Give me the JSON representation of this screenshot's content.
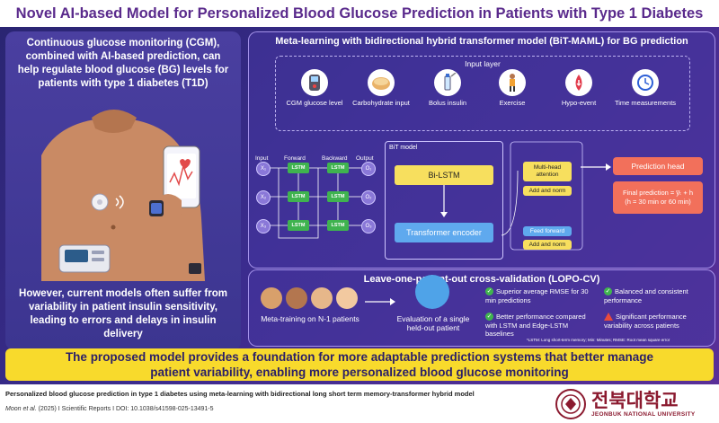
{
  "title": "Novel AI-based Model for Personalized Blood Glucose Prediction in Patients with Type 1 Diabetes",
  "left": {
    "top_text": "Continuous glucose monitoring (CGM), combined with AI-based prediction, can help regulate blood glucose (BG) levels for  patients with type 1 diabetes (T1D)",
    "bottom_text": "However, current models often suffer from variability in patient insulin sensitivity, leading to errors and delays in insulin delivery"
  },
  "meta": {
    "title": "Meta-learning with bidirectional hybrid transformer model (BiT-MAML) for BG prediction",
    "input_layer": {
      "title": "Input layer",
      "items": [
        {
          "label": "CGM glucose level",
          "icon": "cgm-meter-icon"
        },
        {
          "label": "Carbohydrate input",
          "icon": "bread-icon"
        },
        {
          "label": "Bolus insulin",
          "icon": "insulin-vial-icon"
        },
        {
          "label": "Exercise",
          "icon": "exercise-person-icon"
        },
        {
          "label": "Hypo-event",
          "icon": "hypo-drop-icon"
        },
        {
          "label": "Time measurements",
          "icon": "clock-icon"
        }
      ]
    },
    "lstm": {
      "headers": [
        "Input",
        "Forward",
        "Backward",
        "Output"
      ],
      "cell_label": "LSTM",
      "inputs": [
        "X₁",
        "X₂",
        "X₃"
      ],
      "outputs": [
        "O₁",
        "O₂",
        "O₃"
      ]
    },
    "bit": {
      "title": "BiT model",
      "bilstm": "Bi-LSTM",
      "transformer": "Transformer encoder"
    },
    "encoder_blocks": {
      "attention": "Multi-head attention",
      "addnorm1": "Add and norm",
      "feedforward": "Feed forward",
      "addnorm2": "Add and norm"
    },
    "prediction": {
      "head": "Prediction head",
      "formula_line1": "Final prediction = y̅ₜ + h",
      "formula_line2": "(h = 30 min or 60 min)"
    }
  },
  "lopo": {
    "title": "Leave-one-patient-out cross-validation (LOPO-CV)",
    "meta_training": "Meta-training on N-1 patients",
    "evaluation": "Evaluation of a single held-out patient",
    "results": [
      {
        "text": "Superior average RMSE for 30 min predictions",
        "type": "check"
      },
      {
        "text": "Balanced and consistent performance",
        "type": "check"
      },
      {
        "text": "Better performance compared with LSTM and Edge-LSTM baselines",
        "type": "check"
      },
      {
        "text": "Significant performance variability across patients",
        "type": "warning"
      }
    ],
    "footnote": "*LSTM: Long short-term memory; Min: Minutes; RMSE: Root mean square error"
  },
  "banner": "The proposed model provides a foundation for more adaptable prediction systems that better manage patient variability, enabling more personalized blood glucose monitoring",
  "footer": {
    "caption": "Personalized blood glucose prediction in type 1 diabetes using meta-learning with bidirectional long short term memory-transformer hybrid model",
    "cite_authors": "Moon et al.",
    "cite_rest": " (2025) I Scientific Reports I DOI: 10.1038/s41598-025-13491-5",
    "university_korean": "전북대학교",
    "university_english": "JEONBUK NATIONAL UNIVERSITY"
  },
  "colors": {
    "background": "#3b2c8e",
    "title": "#5a2a8c",
    "banner": "#f8da2c",
    "lstm": "#3fb34f",
    "bilstm": "#f7df5e",
    "transformer": "#5fa9ee",
    "prediction": "#f2705b",
    "university": "#8b1a2f"
  }
}
